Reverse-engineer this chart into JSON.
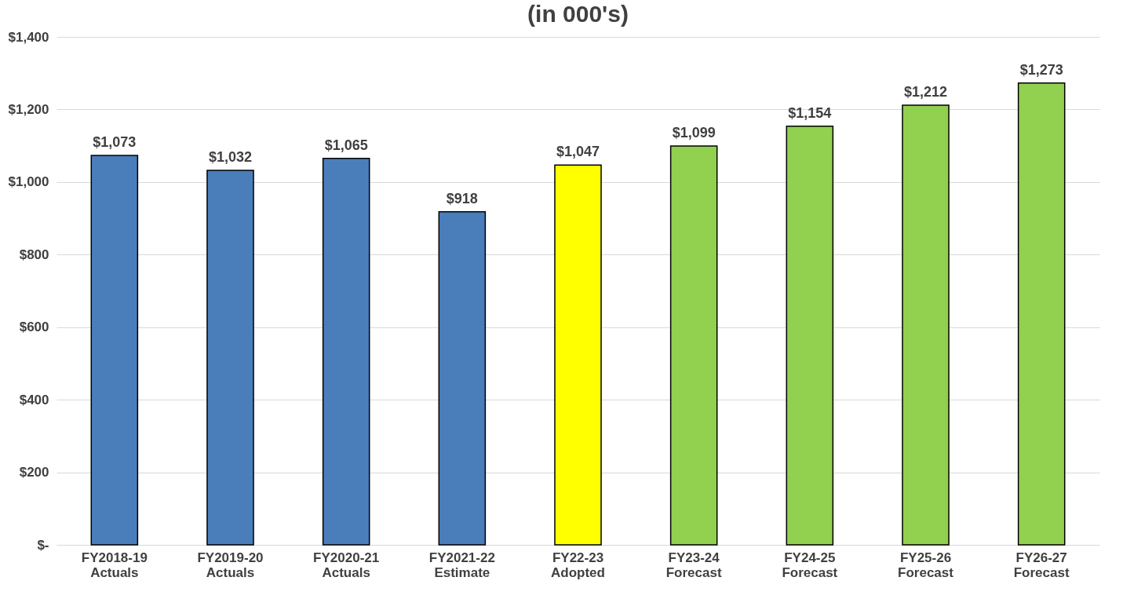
{
  "chart_data": {
    "type": "bar",
    "title": "(in 000's)",
    "categories": [
      "FY2018-19\nActuals",
      "FY2019-20\nActuals",
      "FY2020-21\nActuals",
      "FY2021-22\nEstimate",
      "FY22-23\nAdopted",
      "FY23-24\nForecast",
      "FY24-25\nForecast",
      "FY25-26\nForecast",
      "FY26-27\nForecast"
    ],
    "values": [
      1073,
      1032,
      1065,
      918,
      1047,
      1099,
      1154,
      1212,
      1273
    ],
    "colors": [
      "#4a7ebb",
      "#4a7ebb",
      "#4a7ebb",
      "#4a7ebb",
      "#ffff00",
      "#92d050",
      "#92d050",
      "#92d050",
      "#92d050"
    ],
    "value_labels": [
      "$1,073",
      "$1,032",
      "$1,065",
      "$918",
      "$1,047",
      "$1,099",
      "$1,154",
      "$1,212",
      "$1,273"
    ],
    "ylim": [
      0,
      1400
    ],
    "yticks": [
      {
        "value": 0,
        "label": "$-"
      },
      {
        "value": 200,
        "label": "$200"
      },
      {
        "value": 400,
        "label": "$400"
      },
      {
        "value": 600,
        "label": "$600"
      },
      {
        "value": 800,
        "label": "$800"
      },
      {
        "value": 1000,
        "label": "$1,000"
      },
      {
        "value": 1200,
        "label": "$1,200"
      },
      {
        "value": 1400,
        "label": "$1,400"
      }
    ],
    "grid": "y",
    "legend": false
  }
}
